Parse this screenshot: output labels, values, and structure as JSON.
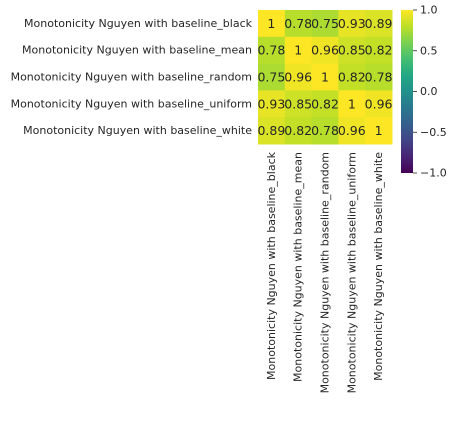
{
  "chart_data": {
    "type": "heatmap",
    "rows": [
      "Monotonicity Nguyen with baseline_black",
      "Monotonicity Nguyen with baseline_mean",
      "Monotonicity Nguyen with baseline_random",
      "Monotonicity Nguyen with baseline_uniform",
      "Monotonicity Nguyen with baseline_white"
    ],
    "columns": [
      "Monotonicity Nguyen with baseline_black",
      "Monotonicity Nguyen with baseline_mean",
      "Monotonicity Nguyen with baseline_random",
      "Monotonicity Nguyen with baseline_uniform",
      "Monotonicity Nguyen with baseline_white"
    ],
    "values": [
      [
        1,
        0.78,
        0.75,
        0.93,
        0.89
      ],
      [
        0.78,
        1,
        0.96,
        0.85,
        0.82
      ],
      [
        0.75,
        0.96,
        1,
        0.82,
        0.78
      ],
      [
        0.93,
        0.85,
        0.82,
        1,
        0.96
      ],
      [
        0.89,
        0.82,
        0.78,
        0.96,
        1
      ]
    ],
    "annotations": [
      [
        "1",
        "0.78",
        "0.75",
        "0.93",
        "0.89"
      ],
      [
        "0.78",
        "1",
        "0.96",
        "0.85",
        "0.82"
      ],
      [
        "0.75",
        "0.96",
        "1",
        "0.82",
        "0.78"
      ],
      [
        "0.93",
        "0.85",
        "0.82",
        "1",
        "0.96"
      ],
      [
        "0.89",
        "0.82",
        "0.78",
        "0.96",
        "1"
      ]
    ],
    "vmin": -1,
    "vmax": 1,
    "colormap": "viridis",
    "colorbar_ticks": [
      1.0,
      0.5,
      0.0,
      -0.5,
      -1.0
    ],
    "colorbar_tick_labels": [
      "1.0",
      "0.5",
      "0.0",
      "−0.5",
      "−1.0"
    ],
    "colors": {
      "annotation_text": "#262626",
      "label_text": "#262626",
      "background": "#ffffff"
    }
  }
}
